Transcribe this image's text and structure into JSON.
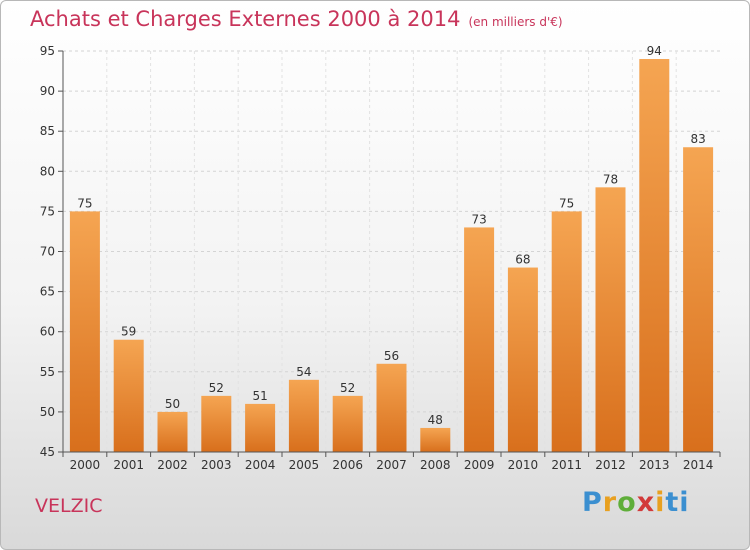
{
  "chart_data": {
    "type": "bar",
    "title": "Achats et Charges Externes 2000 à 2014",
    "unit_label": "(en milliers d'€)",
    "categories": [
      "2000",
      "2001",
      "2002",
      "2003",
      "2004",
      "2005",
      "2006",
      "2007",
      "2008",
      "2009",
      "2010",
      "2011",
      "2012",
      "2013",
      "2014"
    ],
    "values": [
      75,
      59,
      50,
      52,
      51,
      54,
      52,
      56,
      48,
      73,
      68,
      75,
      78,
      94,
      83
    ],
    "ylim": [
      45,
      95
    ],
    "yticks": [
      45,
      50,
      55,
      60,
      65,
      70,
      75,
      80,
      85,
      90,
      95
    ],
    "grid": true,
    "bar_color_top": "#f5a552",
    "bar_color_bottom": "#d86f1c"
  },
  "place_name": "VELZIC",
  "logo": [
    "P",
    "r",
    "o",
    "x",
    "i",
    "ti"
  ]
}
